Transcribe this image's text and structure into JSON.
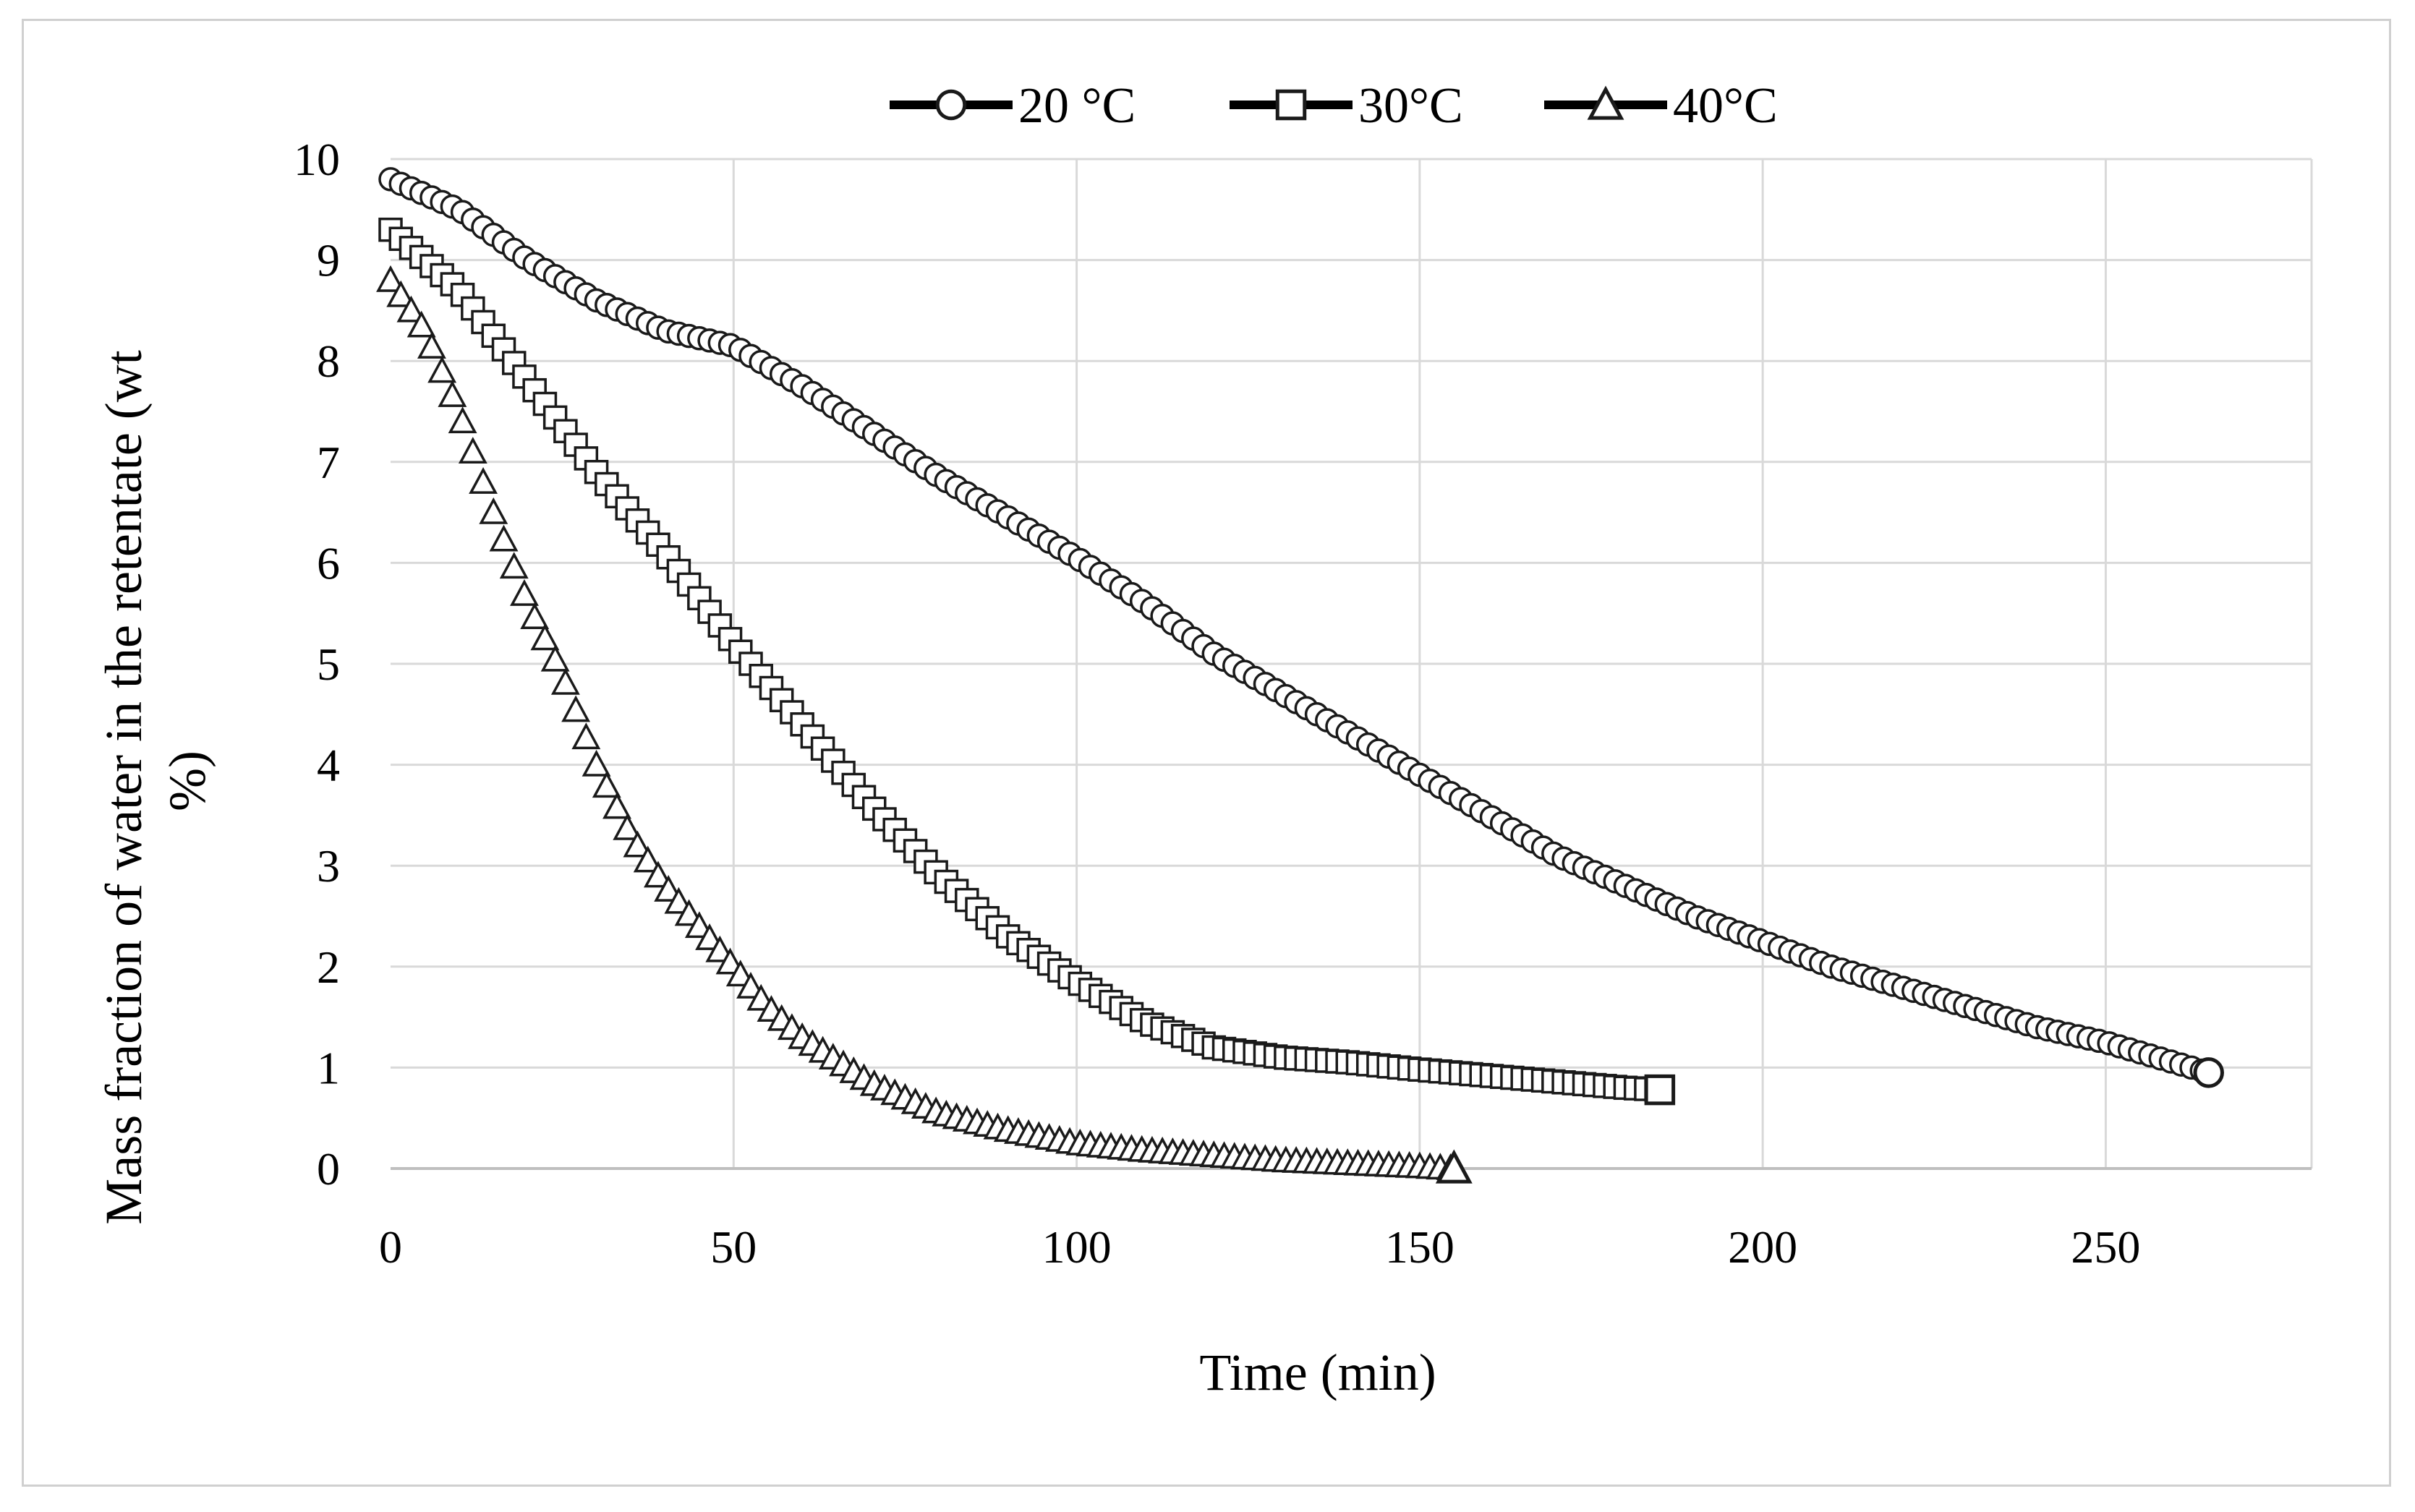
{
  "chart_data": {
    "type": "scatter",
    "title": "",
    "xlabel": "Time (min)",
    "ylabel_lines": [
      "Mass fraction of water in the retentate (wt",
      "%)"
    ],
    "xlim": [
      0,
      280
    ],
    "ylim": [
      0,
      10
    ],
    "xticks": [
      0,
      50,
      100,
      150,
      200,
      250
    ],
    "yticks": [
      0,
      1,
      2,
      3,
      4,
      5,
      6,
      7,
      8,
      9,
      10
    ],
    "grid": true,
    "legend_position": "top-center",
    "series": [
      {
        "name": "20 °C",
        "marker": "circle",
        "x_start": 0,
        "x_end": 265,
        "x_step": 1.5,
        "points": [
          [
            0,
            9.8
          ],
          [
            10,
            9.5
          ],
          [
            20,
            9.0
          ],
          [
            30,
            8.6
          ],
          [
            40,
            8.3
          ],
          [
            50,
            8.15
          ],
          [
            60,
            7.75
          ],
          [
            70,
            7.3
          ],
          [
            80,
            6.85
          ],
          [
            90,
            6.45
          ],
          [
            100,
            6.05
          ],
          [
            110,
            5.6
          ],
          [
            120,
            5.1
          ],
          [
            130,
            4.7
          ],
          [
            140,
            4.3
          ],
          [
            150,
            3.9
          ],
          [
            160,
            3.5
          ],
          [
            170,
            3.1
          ],
          [
            180,
            2.8
          ],
          [
            190,
            2.5
          ],
          [
            200,
            2.25
          ],
          [
            210,
            2.0
          ],
          [
            220,
            1.8
          ],
          [
            230,
            1.6
          ],
          [
            240,
            1.4
          ],
          [
            250,
            1.25
          ],
          [
            260,
            1.05
          ],
          [
            265,
            0.95
          ]
        ]
      },
      {
        "name": "30°C",
        "marker": "square",
        "x_start": 0,
        "x_end": 185,
        "x_step": 1.5,
        "points": [
          [
            0,
            9.3
          ],
          [
            10,
            8.7
          ],
          [
            20,
            7.8
          ],
          [
            30,
            6.9
          ],
          [
            40,
            6.1
          ],
          [
            50,
            5.2
          ],
          [
            60,
            4.4
          ],
          [
            70,
            3.6
          ],
          [
            80,
            2.9
          ],
          [
            90,
            2.3
          ],
          [
            100,
            1.85
          ],
          [
            110,
            1.45
          ],
          [
            120,
            1.2
          ],
          [
            130,
            1.1
          ],
          [
            140,
            1.05
          ],
          [
            150,
            0.98
          ],
          [
            160,
            0.92
          ],
          [
            170,
            0.86
          ],
          [
            180,
            0.8
          ],
          [
            185,
            0.78
          ]
        ]
      },
      {
        "name": "40°C",
        "marker": "triangle",
        "x_start": 0,
        "x_end": 155,
        "x_step": 1.5,
        "points": [
          [
            0,
            8.8
          ],
          [
            5,
            8.3
          ],
          [
            10,
            7.5
          ],
          [
            15,
            6.5
          ],
          [
            20,
            5.6
          ],
          [
            25,
            4.9
          ],
          [
            30,
            4.0
          ],
          [
            35,
            3.3
          ],
          [
            40,
            2.8
          ],
          [
            45,
            2.4
          ],
          [
            50,
            2.0
          ],
          [
            55,
            1.6
          ],
          [
            60,
            1.3
          ],
          [
            70,
            0.85
          ],
          [
            80,
            0.55
          ],
          [
            90,
            0.38
          ],
          [
            100,
            0.25
          ],
          [
            110,
            0.18
          ],
          [
            120,
            0.13
          ],
          [
            130,
            0.08
          ],
          [
            140,
            0.05
          ],
          [
            150,
            0.02
          ],
          [
            155,
            0.0
          ]
        ]
      }
    ]
  }
}
